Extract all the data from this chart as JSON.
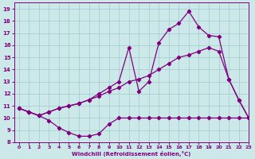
{
  "xlabel": "Windchill (Refroidissement éolien,°C)",
  "background_color": "#cce8e8",
  "line_color": "#800080",
  "grid_color": "#a0cccc",
  "xlim": [
    -0.5,
    23
  ],
  "ylim": [
    8,
    19.5
  ],
  "xticks": [
    0,
    1,
    2,
    3,
    4,
    5,
    6,
    7,
    8,
    9,
    10,
    11,
    12,
    13,
    14,
    15,
    16,
    17,
    18,
    19,
    20,
    21,
    22,
    23
  ],
  "yticks": [
    8,
    9,
    10,
    11,
    12,
    13,
    14,
    15,
    16,
    17,
    18,
    19
  ],
  "line1_x": [
    0,
    1,
    2,
    3,
    4,
    5,
    6,
    7,
    8,
    9,
    10,
    11,
    12,
    13,
    14,
    15,
    16,
    17,
    18,
    19,
    20,
    21,
    22,
    23
  ],
  "line1_y": [
    10.8,
    10.5,
    10.2,
    9.8,
    9.2,
    8.8,
    8.5,
    8.5,
    8.7,
    9.5,
    10.0,
    10.0,
    10.0,
    10.0,
    10.0,
    10.0,
    10.0,
    10.0,
    10.0,
    10.0,
    10.0,
    10.0,
    10.0,
    10.0
  ],
  "line2_x": [
    0,
    1,
    2,
    3,
    4,
    5,
    6,
    7,
    8,
    9,
    10,
    11,
    12,
    13,
    14,
    15,
    16,
    17,
    18,
    19,
    20,
    21,
    22,
    23
  ],
  "line2_y": [
    10.8,
    10.5,
    10.2,
    10.5,
    10.8,
    11.0,
    11.2,
    11.5,
    11.8,
    12.2,
    12.5,
    13.0,
    13.2,
    13.5,
    14.0,
    14.5,
    15.0,
    15.2,
    15.5,
    15.8,
    15.5,
    13.2,
    11.5,
    10.0
  ],
  "line3_x": [
    0,
    1,
    2,
    3,
    4,
    5,
    6,
    7,
    8,
    9,
    10,
    11,
    12,
    13,
    14,
    15,
    16,
    17,
    18,
    19,
    20,
    21,
    22,
    23
  ],
  "line3_y": [
    10.8,
    10.5,
    10.2,
    10.5,
    10.8,
    11.0,
    11.2,
    11.5,
    12.0,
    12.5,
    13.0,
    15.8,
    12.2,
    13.0,
    16.2,
    17.3,
    17.8,
    18.8,
    17.5,
    16.8,
    16.7,
    13.2,
    11.5,
    10.0
  ]
}
